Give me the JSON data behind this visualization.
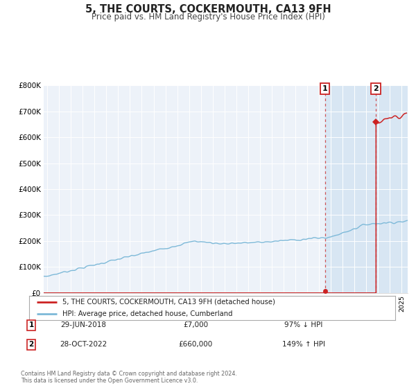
{
  "title": "5, THE COURTS, COCKERMOUTH, CA13 9FH",
  "subtitle": "Price paid vs. HM Land Registry's House Price Index (HPI)",
  "legend_label1": "5, THE COURTS, COCKERMOUTH, CA13 9FH (detached house)",
  "legend_label2": "HPI: Average price, detached house, Cumberland",
  "annotation1_date": "29-JUN-2018",
  "annotation1_price": "£7,000",
  "annotation1_hpi": "97% ↓ HPI",
  "annotation1_year": 2018.49,
  "annotation1_value": 7000,
  "annotation2_date": "28-OCT-2022",
  "annotation2_price": "£660,000",
  "annotation2_hpi": "149% ↑ HPI",
  "annotation2_year": 2022.82,
  "annotation2_value": 660000,
  "footer1": "Contains HM Land Registry data © Crown copyright and database right 2024.",
  "footer2": "This data is licensed under the Open Government Licence v3.0.",
  "hpi_color": "#7db9d8",
  "price_color": "#cc2222",
  "plot_bg_color": "#edf2f9",
  "highlight_bg_color": "#d8e6f3",
  "ylim": [
    0,
    800000
  ],
  "yticks": [
    0,
    100000,
    200000,
    300000,
    400000,
    500000,
    600000,
    700000,
    800000
  ],
  "xlim_start": 1994.7,
  "xlim_end": 2025.5
}
